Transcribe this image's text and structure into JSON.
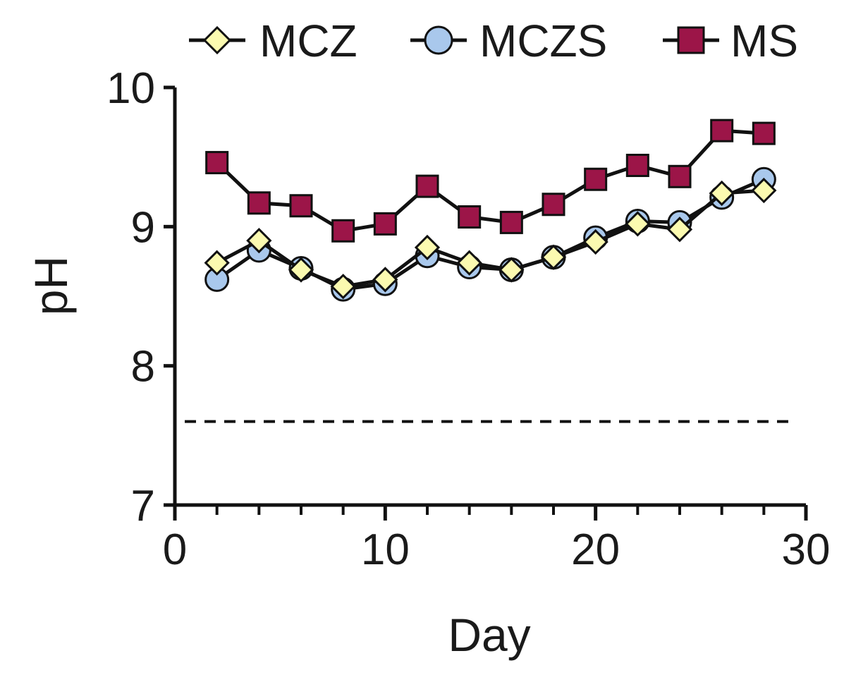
{
  "chart_data": {
    "type": "line",
    "title": "",
    "xlabel": "Day",
    "ylabel": "pH",
    "xlim": [
      0,
      30
    ],
    "ylim": [
      7,
      10
    ],
    "xticks": [
      "0",
      "10",
      "20",
      "30"
    ],
    "yticks": [
      "7",
      "8",
      "9",
      "10"
    ],
    "reference_line": {
      "y": 7.6,
      "style": "dashed"
    },
    "legend_position": "top",
    "x": [
      2,
      4,
      6,
      8,
      10,
      12,
      14,
      16,
      18,
      20,
      22,
      24,
      26,
      28
    ],
    "series": [
      {
        "name": "MCZ",
        "marker": "diamond",
        "color": "#fbfab0",
        "values": [
          8.74,
          8.9,
          8.69,
          8.57,
          8.62,
          8.85,
          8.74,
          8.69,
          8.78,
          8.89,
          9.02,
          8.98,
          9.24,
          9.26
        ]
      },
      {
        "name": "MCZS",
        "marker": "circle",
        "color": "#a9c8ec",
        "values": [
          8.62,
          8.83,
          8.7,
          8.55,
          8.59,
          8.79,
          8.71,
          8.69,
          8.78,
          8.92,
          9.04,
          9.03,
          9.21,
          9.34
        ]
      },
      {
        "name": "MS",
        "marker": "square",
        "color": "#9c1548",
        "values": [
          9.46,
          9.17,
          9.15,
          8.97,
          9.02,
          9.29,
          9.07,
          9.03,
          9.16,
          9.34,
          9.44,
          9.36,
          9.69,
          9.67
        ]
      }
    ]
  }
}
